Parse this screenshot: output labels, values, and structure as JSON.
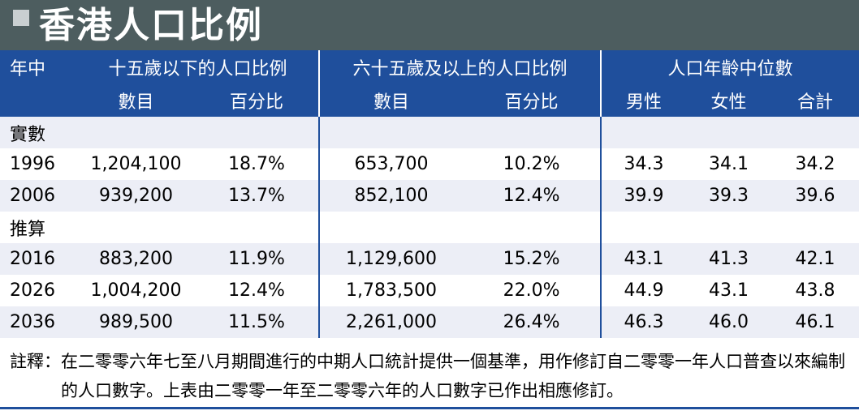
{
  "title": "香港人口比例",
  "header": {
    "year": "年中",
    "groups": [
      "十五歲以下的人口比例",
      "六十五歲及以上的人口比例",
      "人口年齡中位數"
    ],
    "subheaders": [
      "數目",
      "百分比",
      "數目",
      "百分比",
      "男性",
      "女性",
      "合計"
    ]
  },
  "sections": [
    {
      "label": "實數",
      "rows": [
        [
          "1996",
          "1,204,100",
          "18.7%",
          "653,700",
          "10.2%",
          "34.3",
          "34.1",
          "34.2"
        ],
        [
          "2006",
          "939,200",
          "13.7%",
          "852,100",
          "12.4%",
          "39.9",
          "39.3",
          "39.6"
        ]
      ]
    },
    {
      "label": "推算",
      "rows": [
        [
          "2016",
          "883,200",
          "11.9%",
          "1,129,600",
          "15.2%",
          "43.1",
          "41.3",
          "42.1"
        ],
        [
          "2026",
          "1,004,200",
          "12.4%",
          "1,783,500",
          "22.0%",
          "44.9",
          "43.1",
          "43.8"
        ],
        [
          "2036",
          "989,500",
          "11.5%",
          "2,261,000",
          "26.4%",
          "46.3",
          "46.0",
          "46.1"
        ]
      ]
    }
  ],
  "note": {
    "label": "註釋：",
    "text": "在二零零六年七至八月期間進行的中期人口統計提供一個基準，用作修訂自二零零一年人口普查以來編制的人口數字。上表由二零零一年至二零零六年的人口數字已作出相應修訂。"
  }
}
